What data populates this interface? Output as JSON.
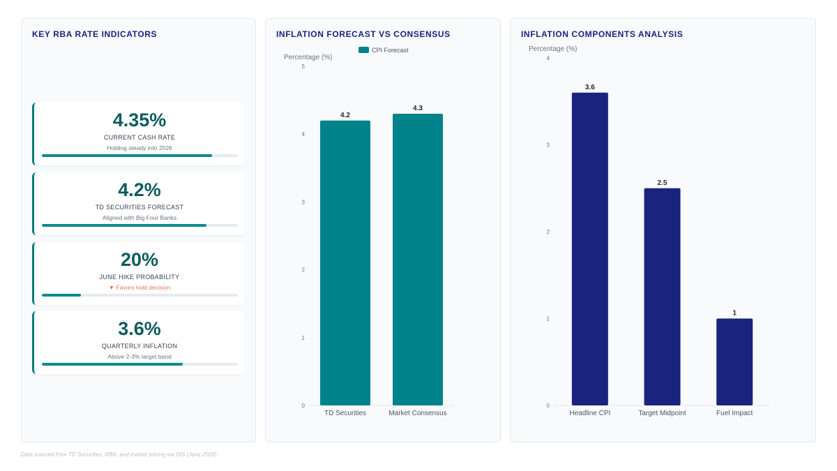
{
  "kpi_panel": {
    "title": "KEY RBA RATE INDICATORS",
    "cards": [
      {
        "value": "4.35%",
        "label": "CURRENT CASH RATE",
        "sub": "Holding steady into 2026",
        "progress": 0.87,
        "alert": false
      },
      {
        "value": "4.2%",
        "label": "TD SECURITIES FORECAST",
        "sub": "Aligned with Big Four Banks",
        "progress": 0.84,
        "alert": false
      },
      {
        "value": "20%",
        "label": "JUNE HIKE PROBABILITY",
        "sub": "▼ Favors hold decision",
        "progress": 0.2,
        "alert": true
      },
      {
        "value": "3.6%",
        "label": "QUARTERLY INFLATION",
        "sub": "Above 2-3% target band",
        "progress": 0.72,
        "alert": false
      }
    ]
  },
  "chart_data": [
    {
      "type": "bar",
      "title": "INFLATION FORECAST VS CONSENSUS",
      "ylabel": "Percentage (%)",
      "xlabel": "",
      "categories": [
        "TD Securities",
        "Market Consensus"
      ],
      "series": [
        {
          "name": "CPI Forecast",
          "values": [
            4.2,
            4.3
          ]
        }
      ],
      "ylim": [
        0,
        5
      ],
      "yticks": [
        0,
        1,
        2,
        3,
        4,
        5
      ],
      "legend": "top",
      "color": "#00838a",
      "grid": false
    },
    {
      "type": "bar",
      "title": "INFLATION COMPONENTS ANALYSIS",
      "ylabel": "Percentage (%)",
      "xlabel": "",
      "categories": [
        "Headline CPI",
        "Target Midpoint",
        "Fuel Impact"
      ],
      "series": [
        {
          "values": [
            3.6,
            2.5,
            1
          ]
        }
      ],
      "ylim": [
        0,
        4
      ],
      "yticks": [
        0,
        1,
        2,
        3,
        4
      ],
      "legend": "none",
      "color": "#1a237e",
      "grid": false
    }
  ],
  "footer": {
    "source": "Data sourced from TD Securities, RBA, and market pricing via OIS (June 2026)"
  }
}
